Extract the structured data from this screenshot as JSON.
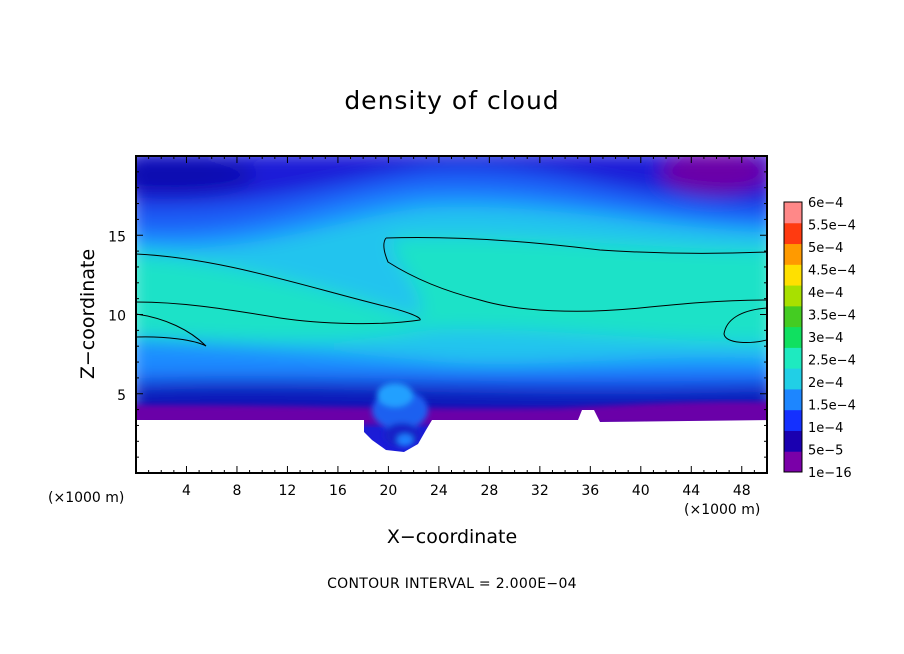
{
  "chart_data": {
    "type": "heatmap",
    "title": "density of cloud",
    "xlabel": "X−coordinate",
    "ylabel": "Z−coordinate",
    "x_unit_left": "(×1000 m)",
    "x_unit_right": "(×1000 m)",
    "xlim": [
      0,
      50
    ],
    "ylim": [
      0,
      20
    ],
    "x_ticks": [
      4,
      8,
      12,
      16,
      20,
      24,
      28,
      32,
      36,
      40,
      44,
      48
    ],
    "y_ticks": [
      5,
      10,
      15
    ],
    "colorbar": {
      "labels": [
        "1e−16",
        "5e−5",
        "1e−4",
        "1.5e−4",
        "2e−4",
        "2.5e−4",
        "3e−4",
        "3.5e−4",
        "4e−4",
        "4.5e−4",
        "5e−4",
        "5.5e−4",
        "6e−4"
      ],
      "colors": [
        "#7a00a8",
        "#1a00b0",
        "#1430ff",
        "#1d86ff",
        "#21cfe6",
        "#1eeac0",
        "#10e060",
        "#44cc22",
        "#a8e000",
        "#ffe000",
        "#ff9a00",
        "#ff3a10",
        "#ff8888"
      ]
    },
    "contour_level": 0.0002,
    "footer": "CONTOUR INTERVAL = 2.000E−04"
  }
}
